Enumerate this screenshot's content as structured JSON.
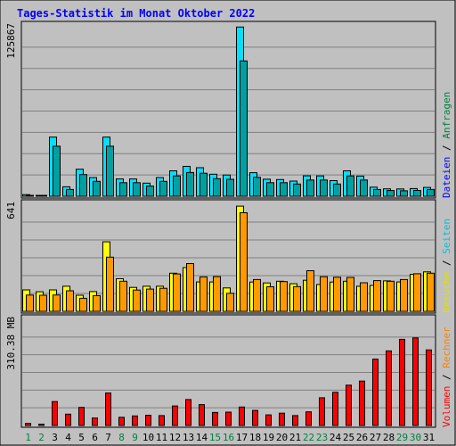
{
  "chart_data": {
    "type": "bar",
    "title": "Tages-Statistik im Monat Oktober 2022",
    "categories": [
      "1",
      "2",
      "3",
      "4",
      "5",
      "6",
      "7",
      "8",
      "9",
      "10",
      "11",
      "12",
      "13",
      "14",
      "15",
      "16",
      "17",
      "18",
      "19",
      "20",
      "21",
      "22",
      "23",
      "24",
      "25",
      "26",
      "27",
      "28",
      "29",
      "30",
      "31"
    ],
    "weekend_days": [
      "1",
      "2",
      "8",
      "9",
      "15",
      "16",
      "22",
      "23",
      "29",
      "30"
    ],
    "grid": true,
    "legend_placement": "right",
    "panels": [
      {
        "id": "top",
        "ymax_label": "125867",
        "ylim": [
          0,
          125867
        ],
        "side_labels": [
          {
            "text": "Anfragen",
            "color": "#008040"
          },
          {
            "text": "Dateien",
            "color": "#0000ff"
          }
        ],
        "series": [
          {
            "name": "Anfragen",
            "color": "#00e0ff",
            "values": [
              1200,
              600,
              43700,
              7000,
              20000,
              13800,
              43700,
              12800,
              12800,
              9700,
              13800,
              18800,
              22100,
              21100,
              16300,
              15700,
              125000,
              17400,
              12600,
              12300,
              11200,
              15100,
              15000,
              11500,
              18800,
              14900,
              6700,
              5500,
              5400,
              5700,
              6500
            ]
          },
          {
            "name": "Dateien",
            "color": "#00a0a0",
            "values": [
              600,
              300,
              37000,
              5000,
              16000,
              11000,
              37000,
              10000,
              10000,
              7500,
              11000,
              15000,
              17500,
              17000,
              13000,
              12500,
              100000,
              14000,
              10000,
              10000,
              9000,
              12000,
              12000,
              9000,
              15000,
              12000,
              5000,
              4200,
              4000,
              4300,
              5000
            ]
          }
        ]
      },
      {
        "id": "middle",
        "ymax_label": "641",
        "ylim": [
          0,
          641
        ],
        "side_labels": [
          {
            "text": "Seiten",
            "color": "#00c0e0"
          },
          {
            "text": "Besuche",
            "color": "#e0e000"
          }
        ],
        "series": [
          {
            "name": "Seiten",
            "color": "#ffff00",
            "values": [
              128,
              117,
              128,
              150,
              96,
              118,
              416,
              195,
              143,
              150,
              150,
              228,
              262,
              176,
              176,
              140,
              630,
              175,
              170,
              180,
              165,
              186,
              160,
              175,
              180,
              150,
              155,
              182,
              176,
              221,
              236
            ]
          },
          {
            "name": "Besuche",
            "color": "#ff9900",
            "values": [
              97,
              96,
              98,
              123,
              78,
              94,
              324,
              180,
              127,
              133,
              138,
              224,
              286,
              206,
              208,
              108,
              590,
              190,
              147,
              178,
              148,
              243,
              207,
              204,
              203,
              171,
              184,
              180,
              190,
              225,
              228
            ]
          }
        ]
      },
      {
        "id": "bottom",
        "ymax_label": "310.38 MB",
        "ylim": [
          0,
          310.38
        ],
        "side_labels": [
          {
            "text": "Rechner",
            "color": "#ff8000"
          },
          {
            "text": "Volumen",
            "color": "#ff0000"
          }
        ],
        "series": [
          {
            "name": "Volumen",
            "color": "#ff0000",
            "values": [
              6,
              4,
              70,
              33,
              53,
              22,
              95,
              24,
              28,
              30,
              29,
              57,
              76,
              61,
              38,
              39,
              54,
              44,
              31,
              36,
              29,
              40,
              81,
              97,
              118,
              130,
              194,
              218,
              252,
              256,
              221
            ]
          }
        ]
      }
    ]
  }
}
